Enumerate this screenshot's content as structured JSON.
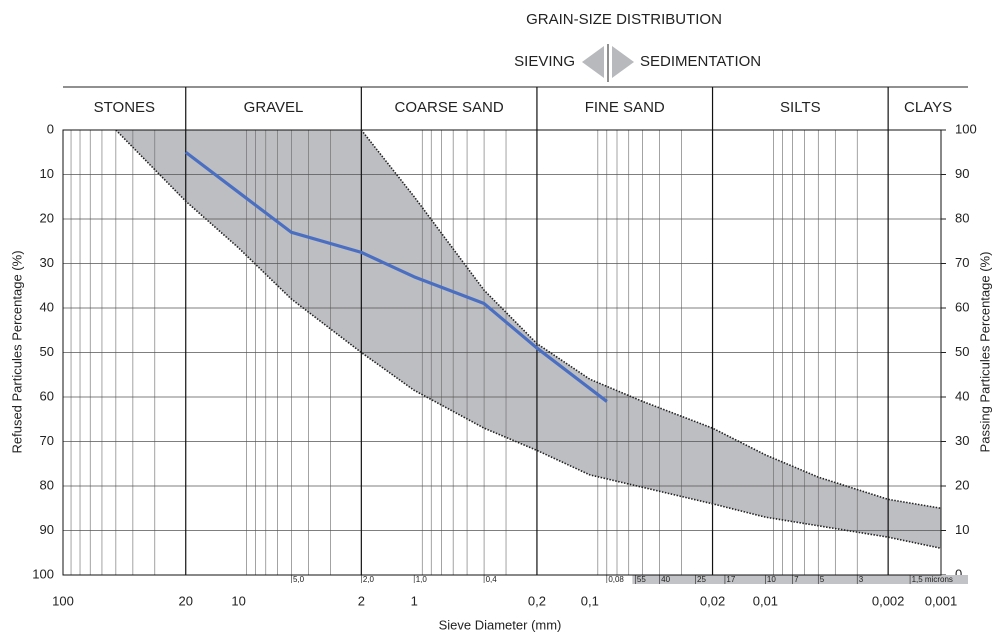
{
  "chart_data": {
    "type": "line",
    "title": "GRAIN-SIZE DISTRIBUTION",
    "left_label": "SIEVING",
    "right_label": "SEDIMENTATION",
    "xlabel": "Sieve Diameter (mm)",
    "ylabel": "Refused Particules Percentage (%)",
    "y2label": "Passing Particules Percentage (%)",
    "xscale": "log",
    "xlim": [
      100,
      0.001
    ],
    "xticks": [
      100,
      20,
      10,
      2,
      1,
      {
        "value": 0.2,
        "label": "0,2"
      },
      {
        "value": 0.1,
        "label": "0,1"
      },
      {
        "value": 0.02,
        "label": "0,02"
      },
      {
        "value": 0.01,
        "label": "0,01"
      },
      {
        "value": 0.002,
        "label": "0,002"
      },
      {
        "value": 0.001,
        "label": "0,001"
      }
    ],
    "xgrid": [
      90,
      80,
      70,
      60,
      50,
      40,
      30,
      9,
      8,
      7,
      6,
      5,
      4,
      3,
      0.9,
      0.8,
      0.7,
      0.6,
      0.5,
      0.4,
      0.3,
      0.09,
      0.08,
      0.07,
      0.06,
      0.05,
      0.04,
      0.03,
      0.009,
      0.008,
      0.007,
      0.006,
      0.005,
      0.004,
      0.003
    ],
    "ylim": [
      100,
      0
    ],
    "yticks": [
      0,
      10,
      20,
      30,
      40,
      50,
      60,
      70,
      80,
      90,
      100
    ],
    "y2lim": [
      0,
      100
    ],
    "y2ticks": [
      100,
      90,
      80,
      70,
      60,
      50,
      40,
      30,
      20,
      10,
      0
    ],
    "grid": true,
    "zones": [
      {
        "label": "STONES",
        "from": 100,
        "to": 20
      },
      {
        "label": "GRAVEL",
        "from": 20,
        "to": 2
      },
      {
        "label": "COARSE SAND",
        "from": 2,
        "to": 0.2
      },
      {
        "label": "FINE SAND",
        "from": 0.2,
        "to": 0.02
      },
      {
        "label": "SILTS",
        "from": 0.02,
        "to": 0.002
      },
      {
        "label": "CLAYS",
        "from": 0.002,
        "to": 0.001
      }
    ],
    "sieve_marks": [
      {
        "value": 5,
        "label": "5,0"
      },
      {
        "value": 2,
        "label": "2,0"
      },
      {
        "value": 1,
        "label": "1,0"
      },
      {
        "value": 0.4,
        "label": "0,4"
      },
      {
        "value": 0.08,
        "label": "0,08"
      }
    ],
    "sedimentation_marks": [
      {
        "value": 0.055,
        "label": "55"
      },
      {
        "value": 0.04,
        "label": "40"
      },
      {
        "value": 0.025,
        "label": "25"
      },
      {
        "value": 0.017,
        "label": "17"
      },
      {
        "value": 0.01,
        "label": "10"
      },
      {
        "value": 0.007,
        "label": "7"
      },
      {
        "value": 0.005,
        "label": "5"
      },
      {
        "value": 0.003,
        "label": "3"
      },
      {
        "value": 0.0015,
        "label": "1,5 microns"
      }
    ],
    "band": {
      "color": "#bdbec2",
      "edge_color": "#222222",
      "upper": {
        "x": [
          2,
          1,
          0.4,
          0.2,
          0.1,
          0.05,
          0.02,
          0.01,
          0.005,
          0.002,
          0.001
        ],
        "values": [
          0,
          15,
          36,
          48,
          56,
          61,
          67,
          73,
          78,
          83,
          85
        ]
      },
      "lower": {
        "x": [
          50,
          20,
          10,
          5,
          2,
          1,
          0.4,
          0.2,
          0.1,
          0.02,
          0.01,
          0.002,
          0.001
        ],
        "values": [
          0,
          16,
          26.5,
          38,
          50,
          58.5,
          67,
          72,
          77.5,
          84,
          87,
          91.5,
          94
        ]
      }
    },
    "series": [
      {
        "color": "#4a6fc2",
        "x": [
          20,
          10,
          5,
          2,
          1,
          0.4,
          0.2,
          0.08
        ],
        "values": [
          5,
          14,
          23,
          27.5,
          33,
          39,
          49,
          61
        ]
      }
    ]
  }
}
